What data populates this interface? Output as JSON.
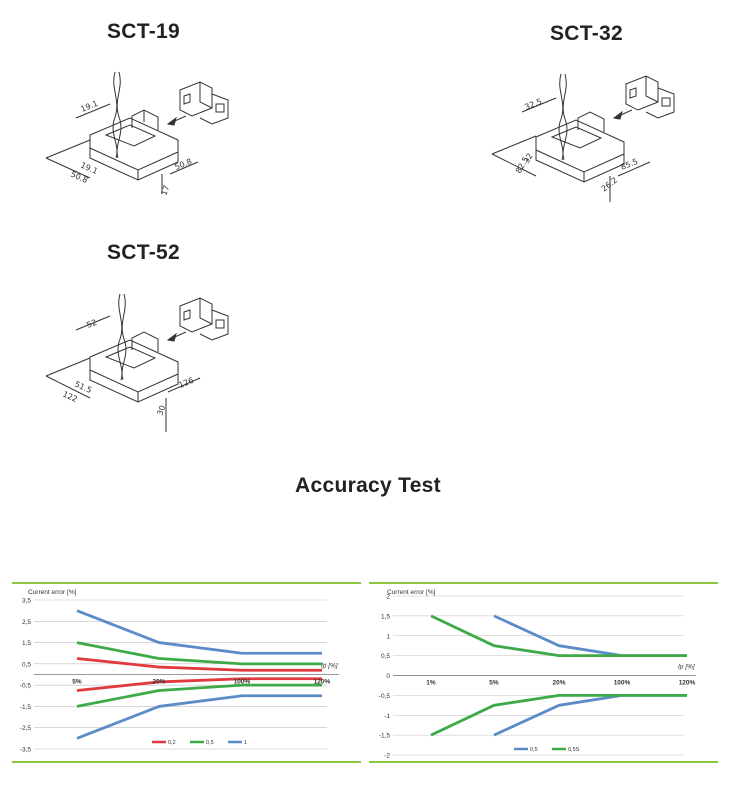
{
  "products": [
    {
      "name": "SCT-19",
      "dims": [
        "19.1",
        "19.1",
        "50.8",
        "50.8",
        "17"
      ]
    },
    {
      "name": "SCT-32",
      "dims": [
        "32.5",
        "32",
        "82.5",
        "85.5",
        "26.2"
      ]
    },
    {
      "name": "SCT-52",
      "dims": [
        "52",
        "51.5",
        "122",
        "126",
        "30"
      ]
    }
  ],
  "section_title": "Accuracy Test",
  "colors": {
    "accent_green": "#8cc63f",
    "red": "#e0393e",
    "green": "#3daa47",
    "blue": "#5b8cc8",
    "grid": "#bfbfbf"
  },
  "chart_data": [
    {
      "type": "line",
      "ylabel": "Current error [%]",
      "xlabel": "Ip [%]",
      "categories": [
        "5%",
        "20%",
        "100%",
        "120%"
      ],
      "ylim": [
        -3.5,
        3.5
      ],
      "yticks": [
        "3,5",
        "2,5",
        "1,5",
        "0,5",
        "-0,5",
        "-1,5",
        "-2,5",
        "-3,5"
      ],
      "grid": true,
      "legend_position": "bottom",
      "series": [
        {
          "name": "0,2",
          "color": "#e0393e",
          "values": [
            0.75,
            0.35,
            0.2,
            0.2
          ]
        },
        {
          "name": "",
          "color": "#e0393e",
          "values": [
            -0.75,
            -0.35,
            -0.2,
            -0.2
          ]
        },
        {
          "name": "0,5",
          "color": "#3daa47",
          "values": [
            1.5,
            0.75,
            0.5,
            0.5
          ]
        },
        {
          "name": "",
          "color": "#3daa47",
          "values": [
            -1.5,
            -0.75,
            -0.5,
            -0.5
          ]
        },
        {
          "name": "1",
          "color": "#5b8cc8",
          "values": [
            3.0,
            1.5,
            1.0,
            1.0
          ]
        },
        {
          "name": "",
          "color": "#5b8cc8",
          "values": [
            -3.0,
            -1.5,
            -1.0,
            -1.0
          ]
        }
      ]
    },
    {
      "type": "line",
      "ylabel": "Current error [%]",
      "xlabel": "Ip [%]",
      "categories": [
        "1%",
        "5%",
        "20%",
        "100%",
        "120%"
      ],
      "ylim": [
        -2,
        2
      ],
      "yticks": [
        "2",
        "1,5",
        "1",
        "0,5",
        "0",
        "-0,5",
        "-1",
        "-1,5",
        "-2"
      ],
      "grid": true,
      "legend_position": "bottom",
      "series": [
        {
          "name": "0,5",
          "color": "#5b8cc8",
          "values": [
            null,
            1.5,
            0.75,
            0.5,
            0.5
          ]
        },
        {
          "name": "",
          "color": "#5b8cc8",
          "values": [
            null,
            -1.5,
            -0.75,
            -0.5,
            -0.5
          ]
        },
        {
          "name": "0,5S",
          "color": "#3daa47",
          "values": [
            1.5,
            0.75,
            0.5,
            0.5,
            0.5
          ]
        },
        {
          "name": "",
          "color": "#3daa47",
          "values": [
            -1.5,
            -0.75,
            -0.5,
            -0.5,
            -0.5
          ]
        }
      ]
    }
  ]
}
